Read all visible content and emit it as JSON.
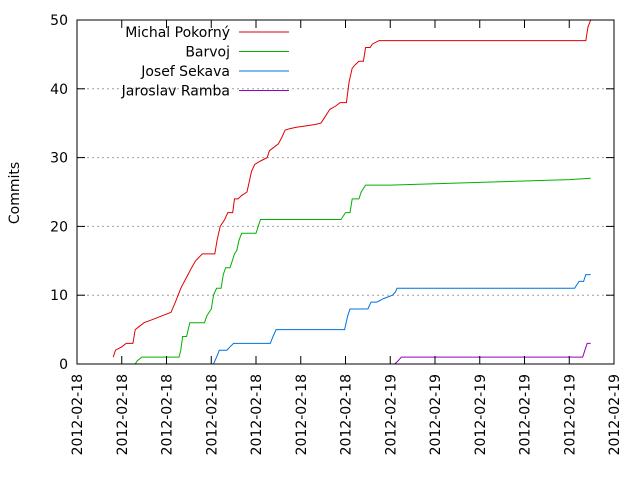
{
  "chart_data": {
    "type": "line",
    "title": "",
    "xlabel": "",
    "ylabel": "Commits",
    "ylim": [
      0,
      50
    ],
    "xlim": [
      0,
      12
    ],
    "y_ticks": [
      0,
      10,
      20,
      30,
      40,
      50
    ],
    "x_ticks": [
      {
        "x": 0,
        "label": "2012-02-18"
      },
      {
        "x": 1,
        "label": "2012-02-18"
      },
      {
        "x": 2,
        "label": "2012-02-18"
      },
      {
        "x": 3,
        "label": "2012-02-18"
      },
      {
        "x": 4,
        "label": "2012-02-18"
      },
      {
        "x": 5,
        "label": "2012-02-18"
      },
      {
        "x": 6,
        "label": "2012-02-18"
      },
      {
        "x": 7,
        "label": "2012-02-19"
      },
      {
        "x": 8,
        "label": "2012-02-19"
      },
      {
        "x": 9,
        "label": "2012-02-19"
      },
      {
        "x": 10,
        "label": "2012-02-19"
      },
      {
        "x": 11,
        "label": "2012-02-19"
      },
      {
        "x": 12,
        "label": "2012-02-19"
      }
    ],
    "grid": "horizontal dotted",
    "legend_position": "top-left",
    "series": [
      {
        "name": "Michal Pokorný",
        "color": "#e00000",
        "points": [
          [
            0.81,
            1
          ],
          [
            0.86,
            2
          ],
          [
            1.0,
            2.5
          ],
          [
            1.1,
            3
          ],
          [
            1.25,
            3
          ],
          [
            1.3,
            5
          ],
          [
            1.4,
            5.5
          ],
          [
            1.5,
            6
          ],
          [
            1.7,
            6.5
          ],
          [
            1.9,
            7
          ],
          [
            2.1,
            7.5
          ],
          [
            2.2,
            9
          ],
          [
            2.32,
            11
          ],
          [
            2.4,
            12
          ],
          [
            2.48,
            13
          ],
          [
            2.56,
            14
          ],
          [
            2.65,
            15
          ],
          [
            2.8,
            16
          ],
          [
            3.08,
            16
          ],
          [
            3.13,
            18
          ],
          [
            3.2,
            20
          ],
          [
            3.3,
            21
          ],
          [
            3.37,
            22
          ],
          [
            3.48,
            22
          ],
          [
            3.52,
            24
          ],
          [
            3.6,
            24
          ],
          [
            3.68,
            24.5
          ],
          [
            3.8,
            25
          ],
          [
            3.9,
            28
          ],
          [
            3.97,
            29
          ],
          [
            4.1,
            29.5
          ],
          [
            4.25,
            30
          ],
          [
            4.3,
            31
          ],
          [
            4.4,
            31.5
          ],
          [
            4.5,
            32
          ],
          [
            4.58,
            33
          ],
          [
            4.65,
            34
          ],
          [
            4.75,
            34.2
          ],
          [
            4.9,
            34.4
          ],
          [
            5.1,
            34.6
          ],
          [
            5.3,
            34.8
          ],
          [
            5.45,
            35
          ],
          [
            5.55,
            36
          ],
          [
            5.65,
            37
          ],
          [
            5.78,
            37.5
          ],
          [
            5.88,
            38
          ],
          [
            6.02,
            38
          ],
          [
            6.08,
            41
          ],
          [
            6.15,
            43
          ],
          [
            6.22,
            43.5
          ],
          [
            6.3,
            44
          ],
          [
            6.4,
            44
          ],
          [
            6.45,
            46
          ],
          [
            6.55,
            46
          ],
          [
            6.6,
            46.5
          ],
          [
            6.75,
            47
          ],
          [
            7.0,
            47
          ],
          [
            8.0,
            47
          ],
          [
            9.0,
            47
          ],
          [
            10.0,
            47
          ],
          [
            11.0,
            47
          ],
          [
            11.37,
            47
          ],
          [
            11.42,
            49
          ],
          [
            11.48,
            50
          ]
        ]
      },
      {
        "name": "Barvoj",
        "color": "#00b000",
        "points": [
          [
            1.3,
            0
          ],
          [
            1.35,
            0.5
          ],
          [
            1.45,
            1
          ],
          [
            1.6,
            1
          ],
          [
            2.0,
            1
          ],
          [
            2.28,
            1
          ],
          [
            2.32,
            2
          ],
          [
            2.36,
            4
          ],
          [
            2.45,
            4
          ],
          [
            2.52,
            6
          ],
          [
            2.6,
            6
          ],
          [
            2.85,
            6
          ],
          [
            2.9,
            7
          ],
          [
            3.0,
            8
          ],
          [
            3.05,
            10
          ],
          [
            3.12,
            11
          ],
          [
            3.22,
            11
          ],
          [
            3.27,
            13
          ],
          [
            3.32,
            14
          ],
          [
            3.42,
            14
          ],
          [
            3.47,
            15
          ],
          [
            3.52,
            16
          ],
          [
            3.57,
            16.5
          ],
          [
            3.62,
            18
          ],
          [
            3.68,
            19
          ],
          [
            4.0,
            19
          ],
          [
            4.05,
            20
          ],
          [
            4.1,
            21
          ],
          [
            4.5,
            21
          ],
          [
            5.0,
            21
          ],
          [
            5.5,
            21
          ],
          [
            5.9,
            21
          ],
          [
            6.0,
            22
          ],
          [
            6.1,
            22
          ],
          [
            6.15,
            24
          ],
          [
            6.3,
            24
          ],
          [
            6.35,
            25
          ],
          [
            6.45,
            26
          ],
          [
            7.0,
            26
          ],
          [
            8.0,
            26.2
          ],
          [
            9.0,
            26.4
          ],
          [
            10.0,
            26.6
          ],
          [
            11.0,
            26.8
          ],
          [
            11.48,
            27
          ]
        ]
      },
      {
        "name": "Josef Sekava",
        "color": "#0070e0",
        "points": [
          [
            3.05,
            0
          ],
          [
            3.12,
            1
          ],
          [
            3.18,
            2
          ],
          [
            3.25,
            2
          ],
          [
            3.35,
            2
          ],
          [
            3.42,
            2.5
          ],
          [
            3.5,
            3
          ],
          [
            3.7,
            3
          ],
          [
            4.0,
            3
          ],
          [
            4.32,
            3
          ],
          [
            4.38,
            4
          ],
          [
            4.45,
            5
          ],
          [
            4.7,
            5
          ],
          [
            5.0,
            5
          ],
          [
            5.5,
            5
          ],
          [
            5.98,
            5
          ],
          [
            6.05,
            7
          ],
          [
            6.1,
            8
          ],
          [
            6.25,
            8
          ],
          [
            6.5,
            8
          ],
          [
            6.57,
            9
          ],
          [
            6.7,
            9
          ],
          [
            6.85,
            9.5
          ],
          [
            7.05,
            10
          ],
          [
            7.12,
            10.5
          ],
          [
            7.15,
            11
          ],
          [
            7.5,
            11
          ],
          [
            8.0,
            11
          ],
          [
            9.0,
            11
          ],
          [
            10.0,
            11
          ],
          [
            10.8,
            11
          ],
          [
            11.12,
            11
          ],
          [
            11.22,
            12
          ],
          [
            11.32,
            12
          ],
          [
            11.37,
            13
          ],
          [
            11.48,
            13
          ]
        ]
      },
      {
        "name": "Jaroslav Ramba",
        "color": "#9000c0",
        "points": [
          [
            7.1,
            0
          ],
          [
            7.18,
            0.5
          ],
          [
            7.25,
            1
          ],
          [
            7.5,
            1
          ],
          [
            8.0,
            1
          ],
          [
            9.0,
            1
          ],
          [
            10.0,
            1
          ],
          [
            11.0,
            1
          ],
          [
            11.3,
            1
          ],
          [
            11.35,
            2
          ],
          [
            11.4,
            3
          ],
          [
            11.48,
            3
          ]
        ]
      }
    ]
  }
}
